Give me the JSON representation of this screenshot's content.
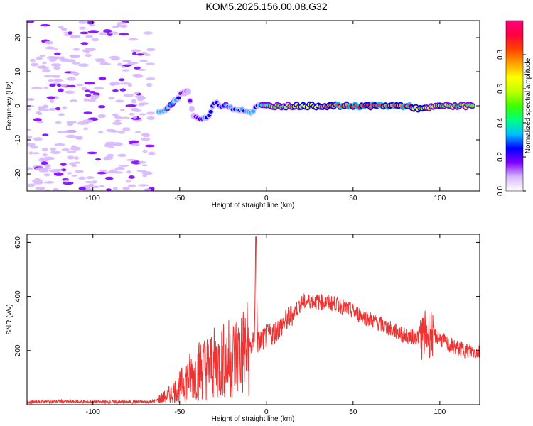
{
  "title": "KOM5.2025.156.00.08.G32",
  "chart_data": [
    {
      "type": "heatmap",
      "xlabel": "Height of straight line (km)",
      "ylabel": "Frequency (Hz)",
      "xlim": [
        -138,
        123
      ],
      "ylim": [
        -25,
        25
      ],
      "xticks": [
        -100,
        -50,
        0,
        50,
        100
      ],
      "yticks": [
        -20,
        -10,
        0,
        10,
        20
      ],
      "colorbar": {
        "label": "Normalized spectral amplitude",
        "range": [
          0,
          1
        ],
        "ticks": [
          0.0,
          0.2,
          0.4,
          0.6,
          0.8
        ],
        "colors": [
          "#ffffff",
          "#d8b8ff",
          "#8000ff",
          "#0000ff",
          "#00c0ff",
          "#00ff80",
          "#40ff00",
          "#c0ff00",
          "#ffff00",
          "#ffa000",
          "#ff4000",
          "#ff0040",
          "#ff0080"
        ]
      },
      "ridge": [
        {
          "x": -62,
          "y": -2,
          "amp": 0.3
        },
        {
          "x": -58,
          "y": -1,
          "amp": 0.35
        },
        {
          "x": -55,
          "y": 0,
          "amp": 0.3
        },
        {
          "x": -52,
          "y": 2,
          "amp": 0.3
        },
        {
          "x": -48,
          "y": 4,
          "amp": 0.2
        },
        {
          "x": -45,
          "y": 4,
          "amp": 0.15
        },
        {
          "x": -42,
          "y": -3,
          "amp": 0.15
        },
        {
          "x": -37,
          "y": -4,
          "amp": 0.25
        },
        {
          "x": -33,
          "y": -3,
          "amp": 0.3
        },
        {
          "x": -30,
          "y": 1,
          "amp": 0.2
        },
        {
          "x": -26,
          "y": 0,
          "amp": 0.3
        },
        {
          "x": -22,
          "y": 0,
          "amp": 0.35
        },
        {
          "x": -18,
          "y": -1,
          "amp": 0.3
        },
        {
          "x": -14,
          "y": -1,
          "amp": 0.25
        },
        {
          "x": -9,
          "y": -2,
          "amp": 0.35
        },
        {
          "x": -5,
          "y": 0,
          "amp": 0.25
        },
        {
          "x": 0,
          "y": 0,
          "amp": 0.45
        },
        {
          "x": 10,
          "y": 0,
          "amp": 0.55
        },
        {
          "x": 20,
          "y": 0,
          "amp": 0.65
        },
        {
          "x": 30,
          "y": 0,
          "amp": 0.7
        },
        {
          "x": 40,
          "y": 0,
          "amp": 0.8
        },
        {
          "x": 50,
          "y": 0,
          "amp": 0.9
        },
        {
          "x": 60,
          "y": 0,
          "amp": 0.85
        },
        {
          "x": 70,
          "y": 0,
          "amp": 0.8
        },
        {
          "x": 80,
          "y": 0,
          "amp": 0.85
        },
        {
          "x": 90,
          "y": -1,
          "amp": 0.6
        },
        {
          "x": 100,
          "y": 0,
          "amp": 0.55
        },
        {
          "x": 110,
          "y": 0,
          "amp": 0.5
        },
        {
          "x": 120,
          "y": 0,
          "amp": 0.45
        }
      ]
    },
    {
      "type": "line",
      "xlabel": "Height of straight line (km)",
      "ylabel": "SNR (v/v)",
      "xlim": [
        -138,
        123
      ],
      "ylim": [
        0,
        630
      ],
      "xticks": [
        -100,
        -50,
        0,
        50,
        100
      ],
      "yticks": [
        200,
        400,
        600
      ],
      "color": "#ee3333",
      "series": [
        {
          "x": [
            -138,
            -120,
            -100,
            -80,
            -70,
            -65,
            -60,
            -55,
            -50,
            -45,
            -40,
            -35,
            -30,
            -25,
            -20,
            -15,
            -10,
            -7,
            -6,
            -5,
            0,
            5,
            10,
            15,
            20,
            25,
            30,
            35,
            40,
            45,
            50,
            55,
            60,
            65,
            70,
            75,
            80,
            85,
            90,
            95,
            100,
            105,
            110,
            115,
            120,
            123
          ],
          "y": [
            10,
            12,
            10,
            10,
            10,
            12,
            25,
            40,
            65,
            100,
            125,
            140,
            150,
            160,
            175,
            190,
            210,
            230,
            620,
            230,
            250,
            270,
            300,
            335,
            375,
            385,
            380,
            378,
            372,
            360,
            345,
            330,
            315,
            300,
            285,
            270,
            255,
            250,
            255,
            265,
            245,
            220,
            210,
            200,
            195,
            195
          ]
        }
      ]
    }
  ]
}
